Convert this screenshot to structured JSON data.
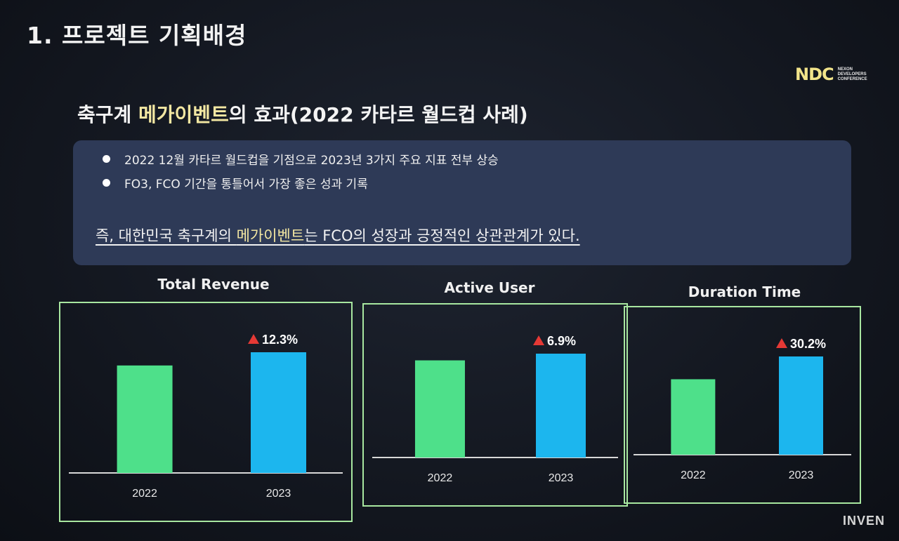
{
  "section_title": "1. 프로젝트 기획배경",
  "logo": {
    "mark": "NDC",
    "lines": [
      "NEXON",
      "DEVELOPERS",
      "CONFERENCE"
    ]
  },
  "headline": {
    "pre": "축구계 ",
    "highlight": "메가이벤트",
    "post": "의 효과(2022 카타르 월드컵 사례)"
  },
  "bullets": [
    "2022 12월 카타르 월드컵을 기점으로 2023년 3가지 주요 지표 전부 상승",
    "FO3, FCO 기간을 통틀어서 가장 좋은 성과 기록"
  ],
  "summary": {
    "pre": "즉, 대한민국 축구계의 ",
    "highlight": "메가이벤트",
    "post": "는 FCO의 성장과 긍정적인 상관관계가 있다."
  },
  "colors": {
    "bar_2022": "#4ee08a",
    "bar_2023": "#1cb6ee",
    "frame": "#a8e7a0",
    "arrow": "#e53935"
  },
  "chart_data": [
    {
      "type": "bar",
      "title": "Total Revenue",
      "categories": [
        "2022",
        "2023"
      ],
      "values": [
        1.0,
        1.123
      ],
      "change_label": "12.3%"
    },
    {
      "type": "bar",
      "title": "Active User",
      "categories": [
        "2022",
        "2023"
      ],
      "values": [
        1.0,
        1.069
      ],
      "change_label": "6.9%"
    },
    {
      "type": "bar",
      "title": "Duration Time",
      "categories": [
        "2022",
        "2023"
      ],
      "values": [
        1.0,
        1.302
      ],
      "change_label": "30.2%"
    }
  ],
  "watermark": "INVEN"
}
